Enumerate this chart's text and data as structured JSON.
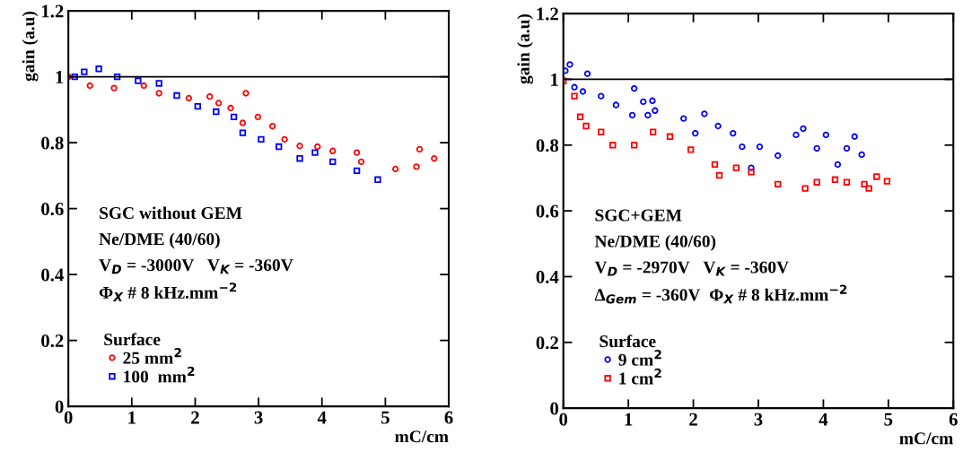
{
  "chart_data": [
    {
      "type": "scatter",
      "xlabel": "mC/cm",
      "ylabel": "gain (a.u)",
      "xlim": [
        0,
        6
      ],
      "ylim": [
        0,
        1.2
      ],
      "xticks": [
        0,
        1,
        2,
        3,
        4,
        5,
        6
      ],
      "yticks": [
        0,
        0.2,
        0.4,
        0.6,
        0.8,
        1,
        1.2
      ],
      "grid": false,
      "legend": "bottom left",
      "legend_title": "Surface",
      "annotations": [
        "SGC without GEM",
        "Ne/DME (40/60)",
        "V$_{D}$ = -3000V   V$_{K}$ = -360V",
        "Φ$_{X}$ # 8 kHz.mm$^{−2}$"
      ],
      "ref_lines": [
        {
          "axis": "y",
          "value": 1,
          "label": null,
          "color": "#000000"
        }
      ],
      "series": [
        {
          "name": "25 mm$^{2}$",
          "color": "#ff0000",
          "marker": "circle",
          "x": [
            0,
            0.34,
            0.72,
            1.19,
            1.43,
            1.9,
            2.23,
            2.37,
            2.56,
            2.75,
            2.8,
            2.99,
            3.22,
            3.41,
            3.65,
            3.93,
            4.17,
            4.55,
            4.62,
            5.16,
            5.49,
            5.54,
            5.77
          ],
          "values": [
            1.0,
            0.973,
            0.966,
            0.973,
            0.95,
            0.935,
            0.94,
            0.92,
            0.905,
            0.86,
            0.95,
            0.878,
            0.85,
            0.81,
            0.79,
            0.788,
            0.775,
            0.77,
            0.742,
            0.72,
            0.727,
            0.78,
            0.752
          ]
        },
        {
          "name": "100  mm$^{2}$",
          "color": "#0000ff",
          "marker": "square",
          "x": [
            0.1,
            0.25,
            0.48,
            0.77,
            1.1,
            1.43,
            1.71,
            2.04,
            2.33,
            2.61,
            2.75,
            3.04,
            3.32,
            3.65,
            3.89,
            4.17,
            4.55,
            4.88
          ],
          "values": [
            1.0,
            1.015,
            1.024,
            1.0,
            0.988,
            0.98,
            0.943,
            0.91,
            0.894,
            0.878,
            0.83,
            0.81,
            0.788,
            0.752,
            0.77,
            0.742,
            0.715,
            0.688
          ]
        }
      ]
    },
    {
      "type": "scatter",
      "xlabel": "mC/cm",
      "ylabel": "gain (a.u)",
      "xlim": [
        0,
        6
      ],
      "ylim": [
        0,
        1.2
      ],
      "xticks": [
        0,
        1,
        2,
        3,
        4,
        5,
        6
      ],
      "yticks": [
        0,
        0.2,
        0.4,
        0.6,
        0.8,
        1,
        1.2
      ],
      "grid": false,
      "legend": "bottom left",
      "legend_title": "Surface",
      "annotations": [
        "SGC+GEM",
        "Ne/DME (40/60)",
        "V$_{D}$ = -2970V   V$_{K}$ = -360V",
        "Δ$_{Gem}$ = -360V  Φ$_{X}$ # 8 kHz.mm$^{−2}$"
      ],
      "ref_lines": [
        {
          "axis": "y",
          "value": 1,
          "label": null,
          "color": "#000000"
        }
      ],
      "series": [
        {
          "name": "9 cm$^{2}$",
          "color": "#0000ff",
          "marker": "circle",
          "x": [
            0.03,
            0.1,
            0.17,
            0.3,
            0.37,
            0.58,
            0.81,
            1.06,
            1.09,
            1.23,
            1.3,
            1.37,
            1.41,
            1.85,
            2.03,
            2.17,
            2.38,
            2.61,
            2.75,
            2.89,
            3.02,
            3.3,
            3.58,
            3.69,
            3.9,
            4.04,
            4.22,
            4.36,
            4.48,
            4.59
          ],
          "values": [
            1.026,
            1.045,
            0.976,
            0.963,
            1.017,
            0.949,
            0.922,
            0.891,
            0.972,
            0.932,
            0.891,
            0.935,
            0.905,
            0.881,
            0.836,
            0.895,
            0.858,
            0.836,
            0.795,
            0.731,
            0.795,
            0.768,
            0.831,
            0.85,
            0.79,
            0.831,
            0.741,
            0.79,
            0.826,
            0.771
          ]
        },
        {
          "name": "1 cm$^{2}$",
          "color": "#ff0000",
          "marker": "square",
          "x": [
            0,
            0.17,
            0.26,
            0.35,
            0.58,
            0.76,
            1.09,
            1.38,
            1.64,
            1.96,
            2.33,
            2.4,
            2.66,
            2.89,
            3.3,
            3.72,
            3.9,
            4.18,
            4.36,
            4.63,
            4.7,
            4.82,
            4.98
          ],
          "values": [
            0.995,
            0.949,
            0.886,
            0.858,
            0.84,
            0.8,
            0.8,
            0.84,
            0.826,
            0.786,
            0.741,
            0.708,
            0.731,
            0.718,
            0.681,
            0.668,
            0.687,
            0.695,
            0.687,
            0.681,
            0.668,
            0.704,
            0.69
          ]
        }
      ]
    }
  ]
}
